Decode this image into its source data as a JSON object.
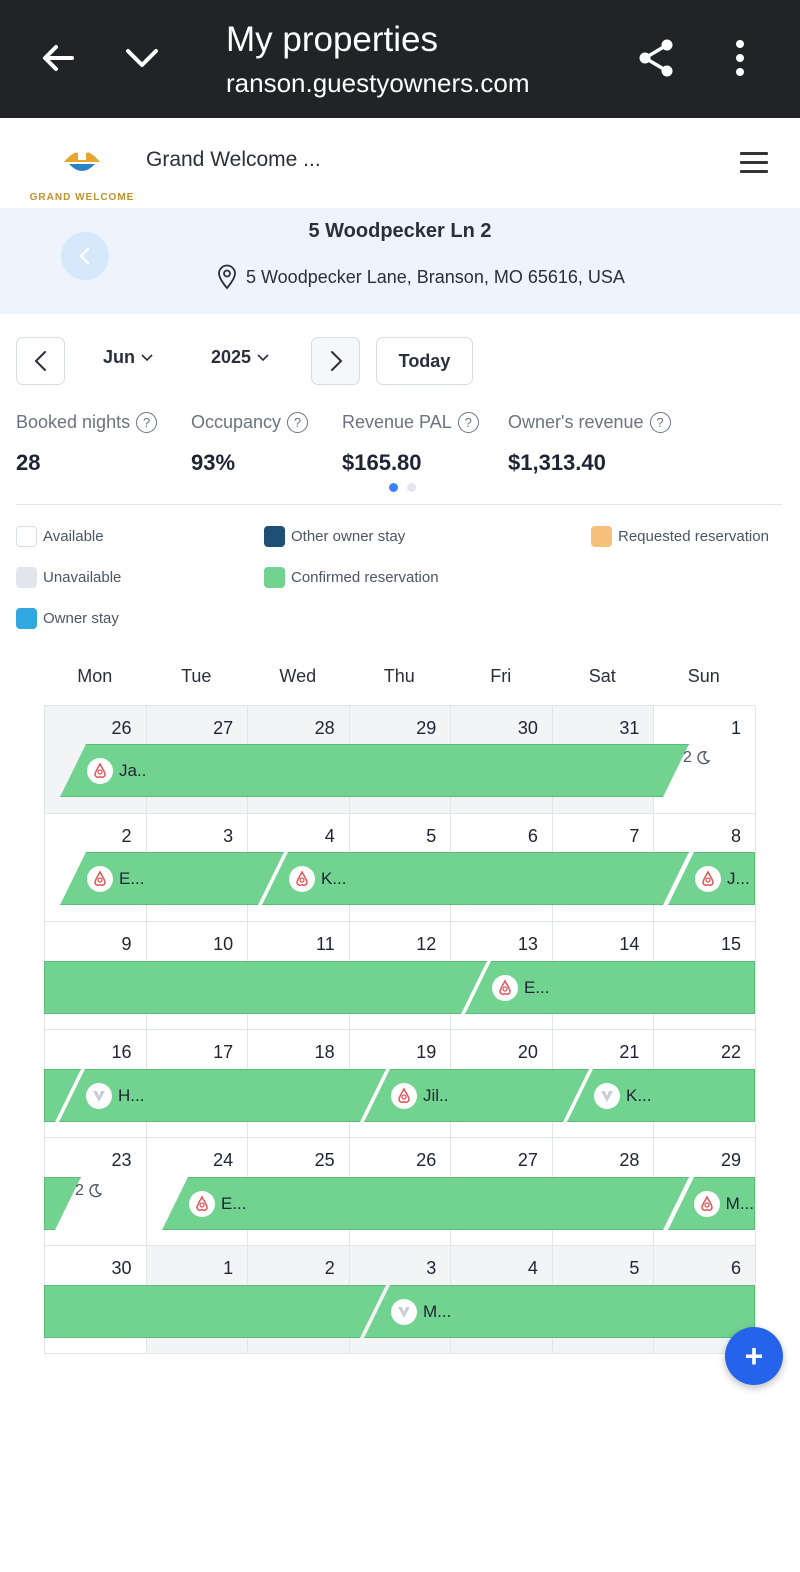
{
  "browser": {
    "title": "My properties",
    "url": "ranson.guestyowners.com"
  },
  "header": {
    "logo_text": "GRAND WELCOME",
    "brand": "Grand Welcome ..."
  },
  "property": {
    "name": "5 Woodpecker Ln 2",
    "address": "5 Woodpecker Lane, Branson, MO 65616, USA"
  },
  "controls": {
    "month": "Jun",
    "year": "2025",
    "today_label": "Today"
  },
  "stats": [
    {
      "label": "Booked nights",
      "value": "28"
    },
    {
      "label": "Occupancy",
      "value": "93%"
    },
    {
      "label": "Revenue PAL",
      "value": "$165.80"
    },
    {
      "label": "Owner's revenue",
      "value": "$1,313.40"
    }
  ],
  "stats_help": "?",
  "legend": [
    {
      "label": "Available",
      "color": "#ffffff"
    },
    {
      "label": "Other owner stay",
      "color": "#1f4f74"
    },
    {
      "label": "Requested reservation",
      "color": "#f6c07a"
    },
    {
      "label": "Unavailable",
      "color": "#e2e5ea"
    },
    {
      "label": "Confirmed reservation",
      "color": "#72d28f"
    },
    {
      "label": "Owner stay",
      "color": "#31a8e0"
    }
  ],
  "weekdays": [
    "Mon",
    "Tue",
    "Wed",
    "Thu",
    "Fri",
    "Sat",
    "Sun"
  ],
  "weeks": [
    {
      "days": [
        "26",
        "27",
        "28",
        "29",
        "30",
        "31",
        "1"
      ]
    },
    {
      "days": [
        "2",
        "3",
        "4",
        "5",
        "6",
        "7",
        "8"
      ]
    },
    {
      "days": [
        "9",
        "10",
        "11",
        "12",
        "13",
        "14",
        "15"
      ]
    },
    {
      "days": [
        "16",
        "17",
        "18",
        "19",
        "20",
        "21",
        "22"
      ]
    },
    {
      "days": [
        "23",
        "24",
        "25",
        "26",
        "27",
        "28",
        "29"
      ]
    },
    {
      "days": [
        "30",
        "1",
        "2",
        "3",
        "4",
        "5",
        "6"
      ]
    }
  ],
  "reservations": {
    "w1_ja": "Ja..",
    "w1_nights": "2",
    "w2_e": "E...",
    "w2_k": "K...",
    "w2_j": "J...",
    "w3_e": "E...",
    "w4_h": "H...",
    "w4_jil": "Jil..",
    "w4_k": "K...",
    "w5_nights": "2",
    "w5_e": "E...",
    "w5_m": "M...",
    "w6_m": "M..."
  },
  "fab_label": "+"
}
